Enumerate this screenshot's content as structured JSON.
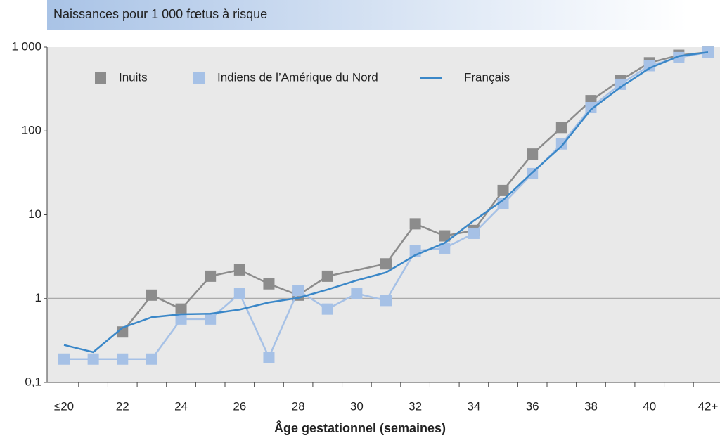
{
  "chart_data": {
    "type": "line",
    "title": "Naissances pour 1 000 fœtus à risque",
    "xlabel": "Âge gestationnel (semaines)",
    "categories": [
      "≤20",
      null,
      "22",
      null,
      "24",
      null,
      "26",
      null,
      "28",
      null,
      "30",
      null,
      "32",
      null,
      "34",
      null,
      "36",
      null,
      "38",
      null,
      "40",
      null,
      "42+"
    ],
    "series": [
      {
        "name": "Inuits",
        "color": "#8c8c8c",
        "marker": "square",
        "values": [
          null,
          null,
          0.4,
          1.1,
          0.75,
          1.85,
          2.2,
          1.5,
          1.1,
          1.85,
          null,
          2.6,
          7.8,
          5.6,
          6.5,
          19.5,
          53,
          110,
          230,
          400,
          650,
          800,
          870
        ]
      },
      {
        "name": "Indiens de l’Amérique du Nord",
        "color": "#a6c1e6",
        "marker": "square",
        "values": [
          0.19,
          0.19,
          0.19,
          0.19,
          0.57,
          0.57,
          1.15,
          0.2,
          1.25,
          0.75,
          1.15,
          0.95,
          3.7,
          4.0,
          6.0,
          13.5,
          31,
          70,
          190,
          360,
          600,
          750,
          870
        ]
      },
      {
        "name": "Français",
        "color": "#3a87c8",
        "marker": "none",
        "values": [
          0.28,
          0.23,
          0.45,
          0.6,
          0.65,
          0.66,
          0.74,
          0.9,
          1.02,
          1.28,
          1.65,
          2.05,
          3.3,
          4.6,
          8.5,
          15,
          32,
          66,
          180,
          330,
          560,
          780,
          870
        ]
      }
    ],
    "connect_gaps": true,
    "ylim": [
      0.1,
      1000
    ],
    "log_y": true,
    "yticks": [
      {
        "value": 0.1,
        "label": "0,1"
      },
      1,
      10,
      100,
      {
        "value": 1000,
        "label": "1 000"
      }
    ],
    "reference_line": 1,
    "legend": "top-left"
  }
}
